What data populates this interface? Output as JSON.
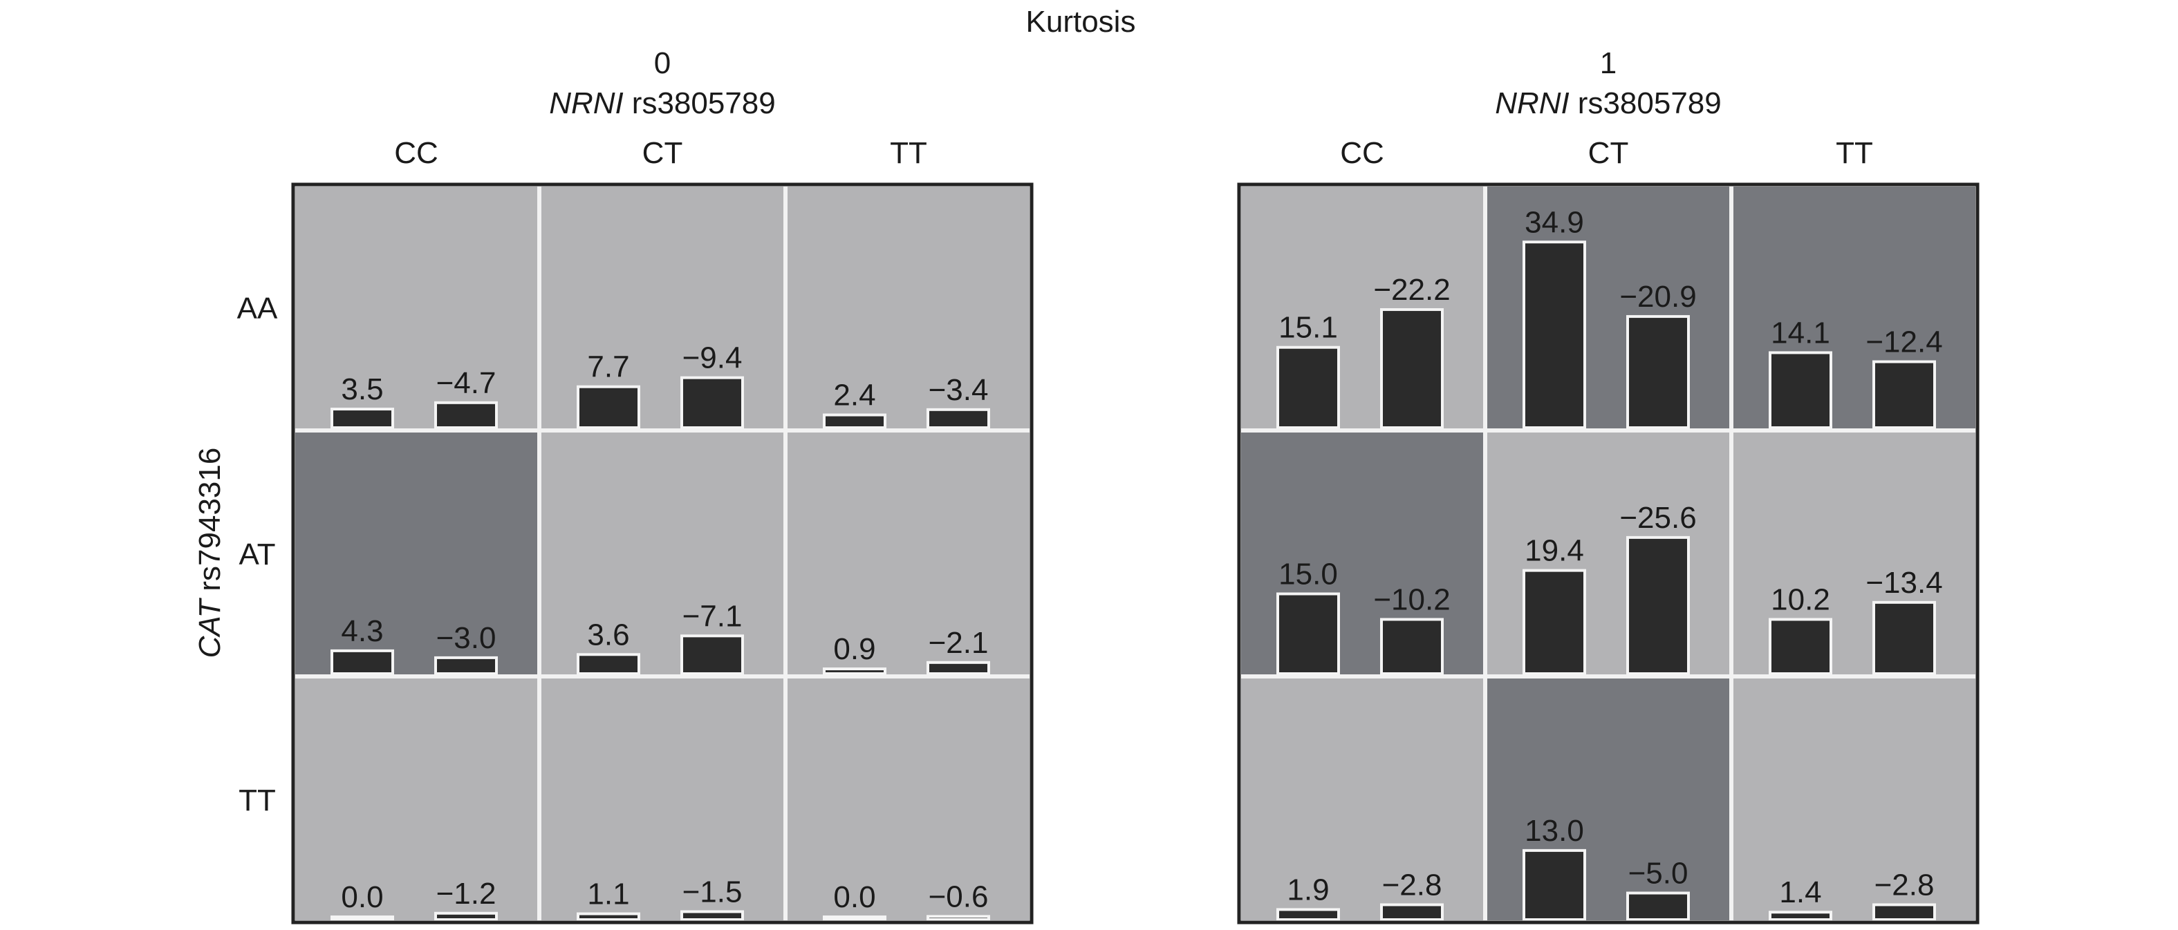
{
  "chart_data": {
    "type": "bar",
    "title": "Kurtosis",
    "column_factor_label": "rs3805789",
    "column_factor_gene": "NRNI",
    "row_factor_label": "rs7943316",
    "row_factor_gene": "CAT",
    "column_levels": [
      "CC",
      "CT",
      "TT"
    ],
    "row_levels": [
      "AA",
      "AT",
      "TT"
    ],
    "ylim": [
      0,
      42
    ],
    "colors": {
      "light_cell": "#b3b3b5",
      "dark_cell": "#76787d",
      "bar": "#2b2b2b",
      "border": "#222222"
    },
    "panels": [
      {
        "label": "0",
        "cells": [
          [
            {
              "values": [
                3.5,
                -4.7
              ],
              "labels": [
                "3.5",
                "−4.7"
              ],
              "shade": "light"
            },
            {
              "values": [
                7.7,
                -9.4
              ],
              "labels": [
                "7.7",
                "−9.4"
              ],
              "shade": "light"
            },
            {
              "values": [
                2.4,
                -3.4
              ],
              "labels": [
                "2.4",
                "−3.4"
              ],
              "shade": "light"
            }
          ],
          [
            {
              "values": [
                4.3,
                -3.0
              ],
              "labels": [
                "4.3",
                "−3.0"
              ],
              "shade": "dark"
            },
            {
              "values": [
                3.6,
                -7.1
              ],
              "labels": [
                "3.6",
                "−7.1"
              ],
              "shade": "light"
            },
            {
              "values": [
                0.9,
                -2.1
              ],
              "labels": [
                "0.9",
                "−2.1"
              ],
              "shade": "light"
            }
          ],
          [
            {
              "values": [
                0.0,
                -1.2
              ],
              "labels": [
                "0.0",
                "−1.2"
              ],
              "shade": "light"
            },
            {
              "values": [
                1.1,
                -1.5
              ],
              "labels": [
                "1.1",
                "−1.5"
              ],
              "shade": "light"
            },
            {
              "values": [
                0.0,
                -0.6
              ],
              "labels": [
                "0.0",
                "−0.6"
              ],
              "shade": "light"
            }
          ]
        ]
      },
      {
        "label": "1",
        "cells": [
          [
            {
              "values": [
                15.1,
                -22.2
              ],
              "labels": [
                "15.1",
                "−22.2"
              ],
              "shade": "light"
            },
            {
              "values": [
                34.9,
                -20.9
              ],
              "labels": [
                "34.9",
                "−20.9"
              ],
              "shade": "dark"
            },
            {
              "values": [
                14.1,
                -12.4
              ],
              "labels": [
                "14.1",
                "−12.4"
              ],
              "shade": "dark"
            }
          ],
          [
            {
              "values": [
                15.0,
                -10.2
              ],
              "labels": [
                "15.0",
                "−10.2"
              ],
              "shade": "dark"
            },
            {
              "values": [
                19.4,
                -25.6
              ],
              "labels": [
                "19.4",
                "−25.6"
              ],
              "shade": "light"
            },
            {
              "values": [
                10.2,
                -13.4
              ],
              "labels": [
                "10.2",
                "−13.4"
              ],
              "shade": "light"
            }
          ],
          [
            {
              "values": [
                1.9,
                -2.8
              ],
              "labels": [
                "1.9",
                "−2.8"
              ],
              "shade": "light"
            },
            {
              "values": [
                13.0,
                -5.0
              ],
              "labels": [
                "13.0",
                "−5.0"
              ],
              "shade": "dark"
            },
            {
              "values": [
                1.4,
                -2.8
              ],
              "labels": [
                "1.4",
                "−2.8"
              ],
              "shade": "light"
            }
          ]
        ]
      }
    ]
  }
}
